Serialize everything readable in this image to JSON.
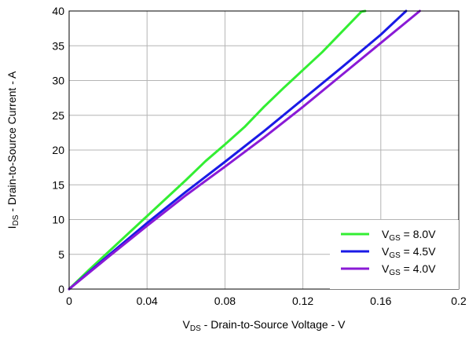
{
  "chart_data": {
    "type": "line",
    "xlabel": {
      "main": "V",
      "sub": "DS",
      "rest": " - Drain-to-Source Voltage - V"
    },
    "ylabel": {
      "main": "I",
      "sub": "DS",
      "rest": " - Drain-to-Source Current - A"
    },
    "xlim": [
      0,
      0.2
    ],
    "ylim": [
      0,
      40
    ],
    "xticks": [
      "0",
      "0.04",
      "0.08",
      "0.12",
      "0.16",
      "0.2"
    ],
    "yticks": [
      "0",
      "5",
      "10",
      "15",
      "20",
      "25",
      "30",
      "35",
      "40"
    ],
    "grid": true,
    "legend_position": "bottom-right",
    "series": [
      {
        "name": "V_GS = 8.0V",
        "legend": {
          "main": "V",
          "sub": "GS",
          "rest": " = 8.0V"
        },
        "color": "#33ee33",
        "x": [
          0,
          0.01,
          0.02,
          0.03,
          0.04,
          0.05,
          0.06,
          0.07,
          0.08,
          0.09,
          0.1,
          0.11,
          0.12,
          0.13,
          0.14,
          0.15,
          0.152
        ],
        "y": [
          0,
          2.7,
          5.3,
          7.9,
          10.5,
          13.1,
          15.7,
          18.4,
          20.8,
          23.3,
          26.2,
          28.9,
          31.5,
          34.1,
          37.0,
          39.9,
          40
        ]
      },
      {
        "name": "V_GS = 4.5V",
        "legend": {
          "main": "V",
          "sub": "GS",
          "rest": " = 4.5V"
        },
        "color": "#1a1ae6",
        "x": [
          0,
          0.02,
          0.04,
          0.06,
          0.08,
          0.1,
          0.12,
          0.14,
          0.16,
          0.173
        ],
        "y": [
          0,
          4.8,
          9.5,
          14.0,
          18.3,
          22.7,
          27.3,
          31.9,
          36.6,
          40
        ]
      },
      {
        "name": "V_GS = 4.0V",
        "legend": {
          "main": "V",
          "sub": "GS",
          "rest": " = 4.0V"
        },
        "color": "#8a1ad6",
        "x": [
          0,
          0.02,
          0.04,
          0.06,
          0.08,
          0.1,
          0.12,
          0.14,
          0.16,
          0.18
        ],
        "y": [
          0,
          4.6,
          9.1,
          13.5,
          17.6,
          21.8,
          26.2,
          30.8,
          35.4,
          40
        ]
      }
    ]
  }
}
